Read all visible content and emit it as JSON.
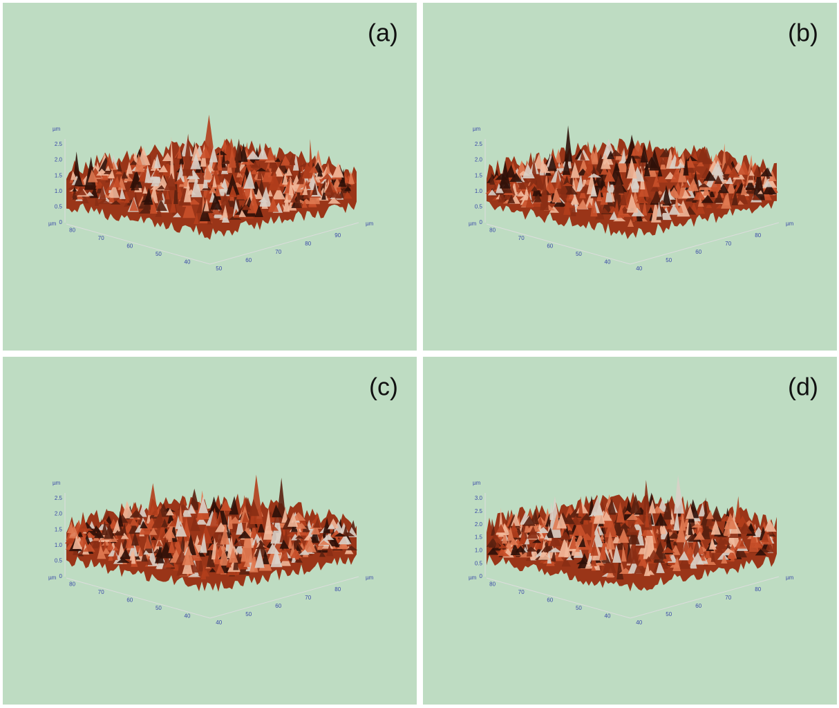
{
  "panels": [
    {
      "label": "(a)",
      "z_unit": "µm",
      "z_ticks": [
        "0",
        "0.5",
        "1.0",
        "1.5",
        "2.0",
        "2.5"
      ],
      "left_unit": "µm",
      "left_ticks": [
        "80",
        "70",
        "60",
        "50",
        "40"
      ],
      "right_unit": "µm",
      "right_ticks": [
        "50",
        "60",
        "70",
        "80",
        "90"
      ]
    },
    {
      "label": "(b)",
      "z_unit": "µm",
      "z_ticks": [
        "0",
        "0.5",
        "1.0",
        "1.5",
        "2.0",
        "2.5"
      ],
      "left_unit": "µm",
      "left_ticks": [
        "80",
        "70",
        "60",
        "50",
        "40"
      ],
      "right_unit": "µm",
      "right_ticks": [
        "40",
        "50",
        "60",
        "70",
        "80"
      ]
    },
    {
      "label": "(c)",
      "z_unit": "µm",
      "z_ticks": [
        "0",
        "0.5",
        "1.0",
        "1.5",
        "2.0",
        "2.5"
      ],
      "left_unit": "µm",
      "left_ticks": [
        "80",
        "70",
        "60",
        "50",
        "40"
      ],
      "right_unit": "µm",
      "right_ticks": [
        "40",
        "50",
        "60",
        "70",
        "80"
      ]
    },
    {
      "label": "(d)",
      "z_unit": "µm",
      "z_ticks": [
        "0",
        "0.5",
        "1.0",
        "1.5",
        "2.0",
        "2.5",
        "3.0"
      ],
      "left_unit": "µm",
      "left_ticks": [
        "80",
        "70",
        "60",
        "50",
        "40"
      ],
      "right_unit": "µm",
      "right_ticks": [
        "40",
        "50",
        "60",
        "70",
        "80"
      ]
    }
  ]
}
